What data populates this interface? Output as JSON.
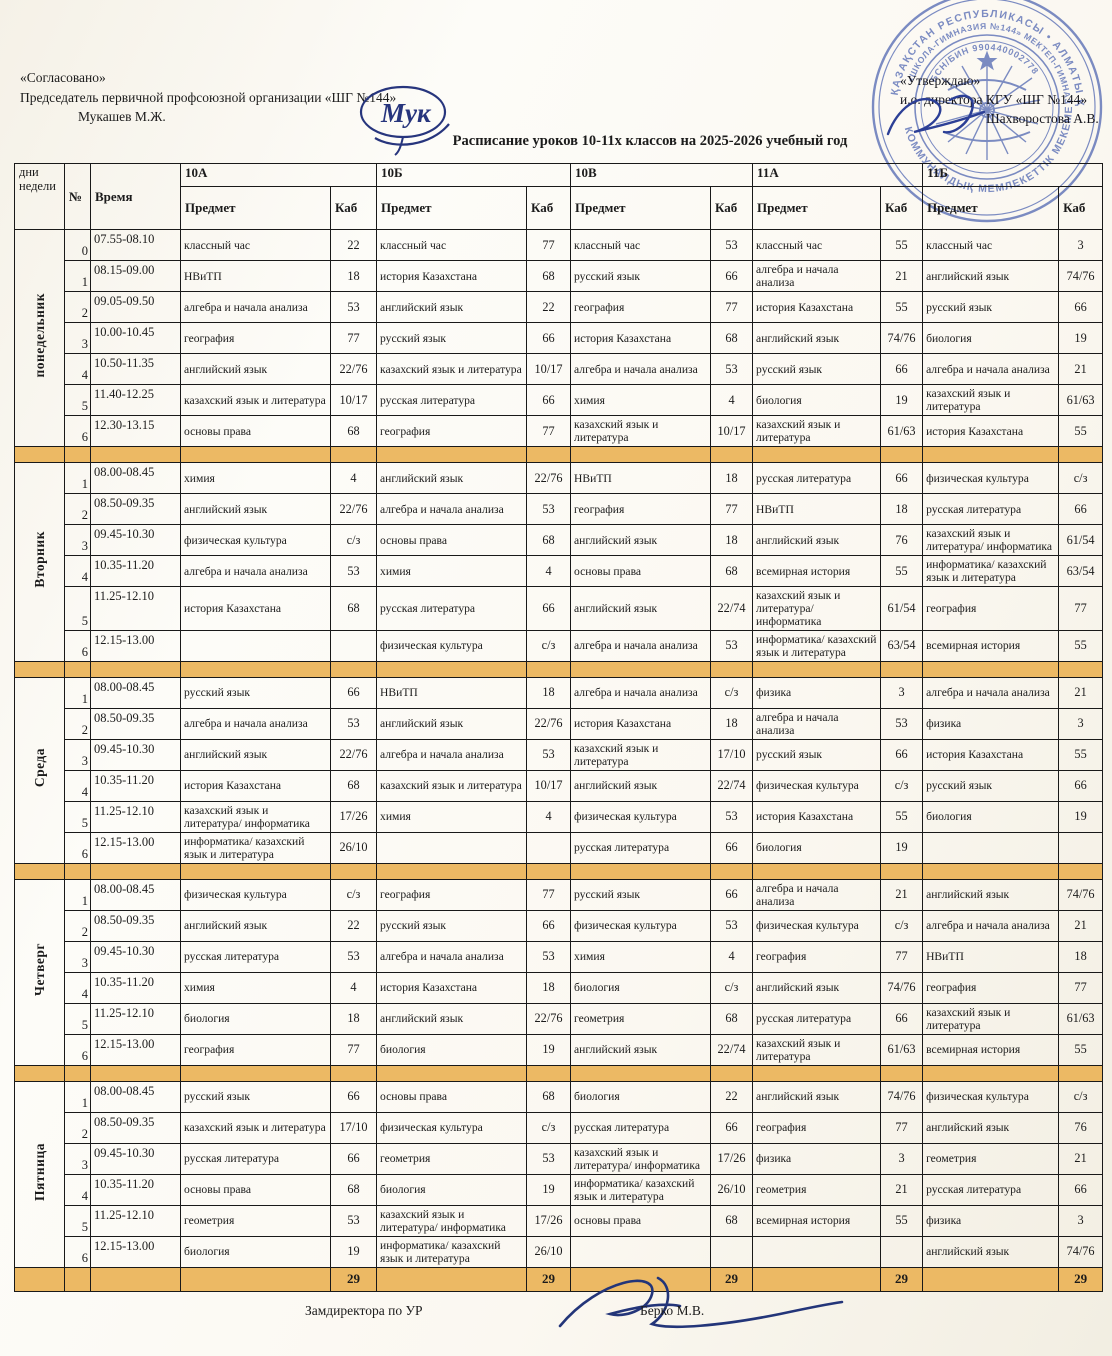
{
  "header": {
    "agreed_label": "«Согласовано»",
    "agreed_role": "Председатель первичной профсоюзной организации «ШГ №144»",
    "agreed_name": "Мукашев М.Ж.",
    "approved_label": "«Утверждаю»",
    "approved_role": "и.о. директора КГУ «ШГ №144»",
    "approved_name": "Шахворостова А.В.",
    "title": "Расписание уроков  10-11х классов на 2025-2026 учебный год"
  },
  "stamp": {
    "outer_top_text": "ҚАЗАҚСТАН РЕСПУБЛИКАСЫ • АЛМАТЫ ҚАЛАСЫ",
    "outer_bottom_text": "КОММУНАЛДЫҚ МЕМЛЕКЕТТІК МЕКЕМЕСІ",
    "inner_ring_text": "«ШКОЛА-ГИМНАЗИЯ №144» МЕКТЕП-ГИМНАЗИЯ",
    "bin_text": "БСН/БИН 990440002778",
    "ink_color": "#3f58ab"
  },
  "footer": {
    "role": "Замдиректора по УР",
    "name": "Берко М.В."
  },
  "colors": {
    "band_orange": "#ecb964",
    "border_black": "#191919"
  },
  "table": {
    "corner_header": "дни недели",
    "num_header": "№",
    "time_header": "Время",
    "subject_header": "Предмет",
    "room_header": "Каб",
    "classes": [
      "10А",
      "10Б",
      "10В",
      "11А",
      "11Б"
    ],
    "totals": [
      "29",
      "29",
      "29",
      "29",
      "29"
    ],
    "days": [
      {
        "name": "понедельник",
        "rows": [
          {
            "num": "0",
            "time": "07.55-08.10",
            "cells": [
              [
                "классный час",
                "22"
              ],
              [
                "классный час",
                "77"
              ],
              [
                "классный час",
                "53"
              ],
              [
                "классный час",
                "55"
              ],
              [
                "классный час",
                "3"
              ]
            ]
          },
          {
            "num": "1",
            "time": "08.15-09.00",
            "cells": [
              [
                "НВиТП",
                "18"
              ],
              [
                "история Казахстана",
                "68"
              ],
              [
                "русский язык",
                "66"
              ],
              [
                "алгебра и начала анализа",
                "21"
              ],
              [
                "английский язык",
                "74/76"
              ]
            ]
          },
          {
            "num": "2",
            "time": "09.05-09.50",
            "cells": [
              [
                "алгебра и начала анализа",
                "53"
              ],
              [
                "английский язык",
                "22"
              ],
              [
                "география",
                "77"
              ],
              [
                "история Казахстана",
                "55"
              ],
              [
                "русский язык",
                "66"
              ]
            ]
          },
          {
            "num": "3",
            "time": "10.00-10.45",
            "cells": [
              [
                "география",
                "77"
              ],
              [
                "русский язык",
                "66"
              ],
              [
                "история Казахстана",
                "68"
              ],
              [
                "английский язык",
                "74/76"
              ],
              [
                "биология",
                "19"
              ]
            ]
          },
          {
            "num": "4",
            "time": "10.50-11.35",
            "cells": [
              [
                "английский язык",
                "22/76"
              ],
              [
                "казахский язык и литература",
                "10/17"
              ],
              [
                "алгебра и начала анализа",
                "53"
              ],
              [
                "русский язык",
                "66"
              ],
              [
                "алгебра и начала анализа",
                "21"
              ]
            ]
          },
          {
            "num": "5",
            "time": "11.40-12.25",
            "cells": [
              [
                "казахский язык и литература",
                "10/17"
              ],
              [
                "русская литература",
                "66"
              ],
              [
                "химия",
                "4"
              ],
              [
                "биология",
                "19"
              ],
              [
                "казахский язык и литература",
                "61/63"
              ]
            ]
          },
          {
            "num": "6",
            "time": "12.30-13.15",
            "cells": [
              [
                "основы права",
                "68"
              ],
              [
                "география",
                "77"
              ],
              [
                "казахский язык и литература",
                "10/17"
              ],
              [
                "казахский язык и литература",
                "61/63"
              ],
              [
                "история Казахстана",
                "55"
              ]
            ]
          }
        ]
      },
      {
        "name": "Вторник",
        "rows": [
          {
            "num": "1",
            "time": "08.00-08.45",
            "cells": [
              [
                "химия",
                "4"
              ],
              [
                "английский язык",
                "22/76"
              ],
              [
                "НВиТП",
                "18"
              ],
              [
                "русская литература",
                "66"
              ],
              [
                "физическая культура",
                "с/з"
              ]
            ]
          },
          {
            "num": "2",
            "time": "08.50-09.35",
            "cells": [
              [
                "английский язык",
                "22/76"
              ],
              [
                "алгебра и начала анализа",
                "53"
              ],
              [
                "география",
                "77"
              ],
              [
                "НВиТП",
                "18"
              ],
              [
                "русская литература",
                "66"
              ]
            ]
          },
          {
            "num": "3",
            "time": "09.45-10.30",
            "cells": [
              [
                "физическая культура",
                "с/з"
              ],
              [
                "основы права",
                "68"
              ],
              [
                "английский язык",
                "18"
              ],
              [
                "английский язык",
                "76"
              ],
              [
                "казахский язык и литература/ информатика",
                "61/54"
              ]
            ]
          },
          {
            "num": "4",
            "time": "10.35-11.20",
            "cells": [
              [
                "алгебра и начала анализа",
                "53"
              ],
              [
                "химия",
                "4"
              ],
              [
                "основы права",
                "68"
              ],
              [
                "всемирная история",
                "55"
              ],
              [
                "информатика/ казахский язык и литература",
                "63/54"
              ]
            ]
          },
          {
            "num": "5",
            "time": "11.25-12.10",
            "cells": [
              [
                "история Казахстана",
                "68"
              ],
              [
                "русская литература",
                "66"
              ],
              [
                "английский язык",
                "22/74"
              ],
              [
                "казахский язык и литература/ информатика",
                "61/54"
              ],
              [
                "география",
                "77"
              ]
            ]
          },
          {
            "num": "6",
            "time": "12.15-13.00",
            "cells": [
              [
                "",
                ""
              ],
              [
                "физическая культура",
                "с/з"
              ],
              [
                "алгебра и начала анализа",
                "53"
              ],
              [
                "информатика/ казахский язык и литература",
                "63/54"
              ],
              [
                "всемирная история",
                "55"
              ]
            ]
          }
        ]
      },
      {
        "name": "Среда",
        "rows": [
          {
            "num": "1",
            "time": "08.00-08.45",
            "cells": [
              [
                "русский язык",
                "66"
              ],
              [
                "НВиТП",
                "18"
              ],
              [
                "алгебра и начала анализа",
                "с/з"
              ],
              [
                "физика",
                "3"
              ],
              [
                "алгебра и начала анализа",
                "21"
              ]
            ]
          },
          {
            "num": "2",
            "time": "08.50-09.35",
            "cells": [
              [
                "алгебра и начала анализа",
                "53"
              ],
              [
                "английский язык",
                "22/76"
              ],
              [
                "история Казахстана",
                "18"
              ],
              [
                "алгебра и начала анализа",
                "53"
              ],
              [
                "физика",
                "3"
              ]
            ]
          },
          {
            "num": "3",
            "time": "09.45-10.30",
            "cells": [
              [
                "английский язык",
                "22/76"
              ],
              [
                "алгебра и начала анализа",
                "53"
              ],
              [
                "казахский язык и литература",
                "17/10"
              ],
              [
                "русский язык",
                "66"
              ],
              [
                "история Казахстана",
                "55"
              ]
            ]
          },
          {
            "num": "4",
            "time": "10.35-11.20",
            "cells": [
              [
                "история Казахстана",
                "68"
              ],
              [
                "казахский язык и литература",
                "10/17"
              ],
              [
                "английский язык",
                "22/74"
              ],
              [
                "физическая культура",
                "с/з"
              ],
              [
                "русский язык",
                "66"
              ]
            ]
          },
          {
            "num": "5",
            "time": "11.25-12.10",
            "cells": [
              [
                "казахский язык и литература/ информатика",
                "17/26"
              ],
              [
                "химия",
                "4"
              ],
              [
                "физическая культура",
                "53"
              ],
              [
                "история Казахстана",
                "55"
              ],
              [
                "биология",
                "19"
              ]
            ]
          },
          {
            "num": "6",
            "time": "12.15-13.00",
            "cells": [
              [
                "информатика/ казахский язык и литература",
                "26/10"
              ],
              [
                "",
                ""
              ],
              [
                "русская литература",
                "66"
              ],
              [
                "биология",
                "19"
              ],
              [
                "",
                ""
              ]
            ]
          }
        ]
      },
      {
        "name": "Четверг",
        "rows": [
          {
            "num": "1",
            "time": "08.00-08.45",
            "cells": [
              [
                "физическая культура",
                "с/з"
              ],
              [
                "география",
                "77"
              ],
              [
                "русский язык",
                "66"
              ],
              [
                "алгебра и начала анализа",
                "21"
              ],
              [
                "английский язык",
                "74/76"
              ]
            ]
          },
          {
            "num": "2",
            "time": "08.50-09.35",
            "cells": [
              [
                "английский язык",
                "22"
              ],
              [
                "русский язык",
                "66"
              ],
              [
                "физическая культура",
                "53"
              ],
              [
                "физическая культура",
                "с/з"
              ],
              [
                "алгебра и начала анализа",
                "21"
              ]
            ]
          },
          {
            "num": "3",
            "time": "09.45-10.30",
            "cells": [
              [
                "русская литература",
                "53"
              ],
              [
                "алгебра и начала анализа",
                "53"
              ],
              [
                "химия",
                "4"
              ],
              [
                "география",
                "77"
              ],
              [
                "НВиТП",
                "18"
              ]
            ]
          },
          {
            "num": "4",
            "time": "10.35-11.20",
            "cells": [
              [
                "химия",
                "4"
              ],
              [
                "история Казахстана",
                "18"
              ],
              [
                "биология",
                "с/з"
              ],
              [
                "английский язык",
                "74/76"
              ],
              [
                "география",
                "77"
              ]
            ]
          },
          {
            "num": "5",
            "time": "11.25-12.10",
            "cells": [
              [
                "биология",
                "18"
              ],
              [
                "английский язык",
                "22/76"
              ],
              [
                "геометрия",
                "68"
              ],
              [
                "русская литература",
                "66"
              ],
              [
                "казахский язык и литература",
                "61/63"
              ]
            ]
          },
          {
            "num": "6",
            "time": "12.15-13.00",
            "cells": [
              [
                "география",
                "77"
              ],
              [
                "биология",
                "19"
              ],
              [
                "английский язык",
                "22/74"
              ],
              [
                "казахский язык и литература",
                "61/63"
              ],
              [
                "всемирная история",
                "55"
              ]
            ]
          }
        ]
      },
      {
        "name": "Пятница",
        "rows": [
          {
            "num": "1",
            "time": "08.00-08.45",
            "cells": [
              [
                "русский язык",
                "66"
              ],
              [
                "основы права",
                "68"
              ],
              [
                "биология",
                "22"
              ],
              [
                "английский язык",
                "74/76"
              ],
              [
                "физическая культура",
                "с/з"
              ]
            ]
          },
          {
            "num": "2",
            "time": "08.50-09.35",
            "cells": [
              [
                "казахский язык и литература",
                "17/10"
              ],
              [
                "физическая культура",
                "с/з"
              ],
              [
                "русская литература",
                "66"
              ],
              [
                "география",
                "77"
              ],
              [
                "английский язык",
                "76"
              ]
            ]
          },
          {
            "num": "3",
            "time": "09.45-10.30",
            "cells": [
              [
                "русская литература",
                "66"
              ],
              [
                "геометрия",
                "53"
              ],
              [
                "казахский язык и литература/ информатика",
                "17/26"
              ],
              [
                "физика",
                "3"
              ],
              [
                "геометрия",
                "21"
              ]
            ]
          },
          {
            "num": "4",
            "time": "10.35-11.20",
            "cells": [
              [
                "основы права",
                "68"
              ],
              [
                "биология",
                "19"
              ],
              [
                "информатика/ казахский язык и литература",
                "26/10"
              ],
              [
                "геометрия",
                "21"
              ],
              [
                "русская литература",
                "66"
              ]
            ]
          },
          {
            "num": "5",
            "time": "11.25-12.10",
            "cells": [
              [
                "геометрия",
                "53"
              ],
              [
                "казахский язык и литература/ информатика",
                "17/26"
              ],
              [
                "основы права",
                "68"
              ],
              [
                "всемирная история",
                "55"
              ],
              [
                "физика",
                "3"
              ]
            ]
          },
          {
            "num": "6",
            "time": "12.15-13.00",
            "cells": [
              [
                "биология",
                "19"
              ],
              [
                "информатика/ казахский язык и литература",
                "26/10"
              ],
              [
                "",
                ""
              ],
              [
                "",
                ""
              ],
              [
                "английский язык",
                "74/76"
              ]
            ]
          }
        ]
      }
    ]
  }
}
